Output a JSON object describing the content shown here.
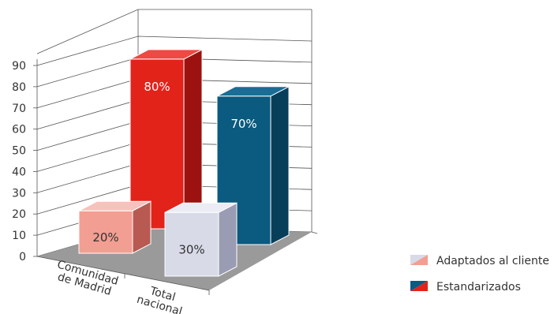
{
  "chart_data": {
    "type": "bar",
    "categories": [
      [
        "Comunidad",
        "de Madrid"
      ],
      [
        "Total",
        "nacional"
      ]
    ],
    "series": [
      {
        "name": "Adaptados al cliente",
        "values": [
          20,
          30
        ],
        "labels": [
          "20%",
          "30%"
        ]
      },
      {
        "name": "Estandarizados",
        "values": [
          80,
          70
        ],
        "labels": [
          "80%",
          "70%"
        ]
      }
    ],
    "yticks": [
      "0",
      "10",
      "20",
      "30",
      "40",
      "50",
      "60",
      "70",
      "80",
      "90"
    ],
    "ylim": [
      0,
      90
    ],
    "grid": true,
    "legend_position": "bottom-right",
    "colors": {
      "madrid_front": [
        "#f29e92",
        "#e2231a"
      ],
      "madrid_side": [
        "#b85a52",
        "#9c1210"
      ],
      "madrid_top": [
        "#f7c2bb",
        "#ec4a42"
      ],
      "nacional_front": [
        "#d8dae8",
        "#0b5a7f"
      ],
      "nacional_side": [
        "#9a9cb4",
        "#073f5b"
      ],
      "nacional_top": [
        "#ebecf4",
        "#1a6d95"
      ],
      "floor": "#9a9a9a",
      "legend_adaptados": [
        "#d8dae8",
        "#f29e92"
      ],
      "legend_estandarizados": [
        "#0b5a7f",
        "#e2231a"
      ]
    }
  }
}
